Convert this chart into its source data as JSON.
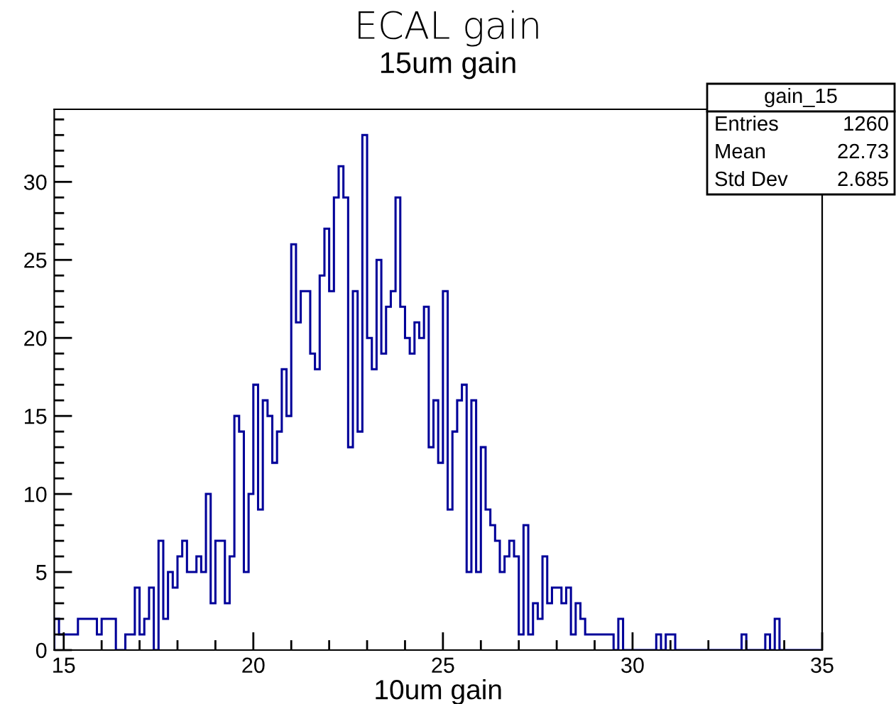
{
  "chart_data": {
    "type": "histogram",
    "title": "ECAL gain",
    "subtitle": "15um gain",
    "xlabel": "10um gain",
    "bins": [
      14.75,
      14.875,
      15,
      15.125,
      15.25,
      15.375,
      15.5,
      15.625,
      15.75,
      15.875,
      16,
      16.125,
      16.25,
      16.375,
      16.5,
      16.625,
      16.75,
      16.875,
      17,
      17.125,
      17.25,
      17.375,
      17.5,
      17.625,
      17.75,
      17.875,
      18,
      18.125,
      18.25,
      18.375,
      18.5,
      18.625,
      18.75,
      18.875,
      19,
      19.125,
      19.25,
      19.375,
      19.5,
      19.625,
      19.75,
      19.875,
      20,
      20.125,
      20.25,
      20.375,
      20.5,
      20.625,
      20.75,
      20.875,
      21,
      21.125,
      21.25,
      21.375,
      21.5,
      21.625,
      21.75,
      21.875,
      22,
      22.125,
      22.25,
      22.375,
      22.5,
      22.625,
      22.75,
      22.875,
      23,
      23.125,
      23.25,
      23.375,
      23.5,
      23.625,
      23.75,
      23.875,
      24,
      24.125,
      24.25,
      24.375,
      24.5,
      24.625,
      24.75,
      24.875,
      25,
      25.125,
      25.25,
      25.375,
      25.5,
      25.625,
      25.75,
      25.875,
      26,
      26.125,
      26.25,
      26.375,
      26.5,
      26.625,
      26.75,
      26.875,
      27,
      27.125,
      27.25,
      27.375,
      27.5,
      27.625,
      27.75,
      27.875,
      28,
      28.125,
      28.25,
      28.375,
      28.5,
      28.625,
      28.75,
      28.875,
      29,
      29.125,
      29.25,
      29.375,
      29.5,
      29.625,
      29.75,
      29.875,
      30,
      30.125,
      30.25,
      30.375,
      30.5,
      30.625,
      30.75,
      30.875,
      31,
      31.125,
      31.25,
      31.375,
      31.5,
      31.625,
      31.75,
      31.875,
      32,
      32.125,
      32.25,
      32.375,
      32.5,
      32.625,
      32.75,
      32.875,
      33,
      33.125,
      33.25,
      33.375,
      33.5,
      33.625,
      33.75,
      33.875,
      34,
      34.125,
      34.25,
      34.375,
      34.5,
      34.625,
      34.75,
      34.875,
      35
    ],
    "values": [
      2,
      1,
      1,
      1,
      1,
      2,
      2,
      2,
      2,
      1,
      2,
      2,
      2,
      0,
      0,
      1,
      1,
      4,
      1,
      2,
      4,
      0,
      7,
      2,
      5,
      4,
      6,
      7,
      5,
      5,
      6,
      5,
      10,
      3,
      7,
      7,
      3,
      6,
      15,
      14,
      5,
      10,
      17,
      9,
      16,
      15,
      12,
      14,
      18,
      15,
      26,
      21,
      23,
      23,
      19,
      18,
      24,
      27,
      23,
      29,
      31,
      29,
      13,
      23,
      14,
      33,
      20,
      18,
      25,
      19,
      22,
      23,
      29,
      22,
      20,
      19,
      21,
      20,
      22,
      13,
      16,
      12,
      23,
      9,
      14,
      16,
      17,
      5,
      16,
      5,
      13,
      9,
      8,
      7,
      5,
      6,
      7,
      6,
      1,
      8,
      1,
      3,
      2,
      6,
      3,
      4,
      4,
      3,
      4,
      1,
      3,
      2,
      1,
      1,
      1,
      1,
      1,
      1,
      0,
      2,
      0,
      0,
      0,
      0,
      0,
      0,
      0,
      1,
      0,
      1,
      1,
      0,
      0,
      0,
      0,
      0,
      0,
      0,
      0,
      0,
      0,
      0,
      0,
      0,
      0,
      1,
      0,
      0,
      0,
      0,
      1,
      0,
      2,
      0,
      0,
      0,
      0,
      0,
      0,
      0,
      0,
      0
    ],
    "color": "#000099",
    "xlim": [
      14.75,
      35
    ],
    "xticks": [
      15,
      {
        "value": 16,
        "label": null
      },
      {
        "value": 17,
        "label": null
      },
      {
        "value": 18,
        "label": null
      },
      {
        "value": 19,
        "label": null
      },
      20,
      {
        "value": 21,
        "label": null
      },
      {
        "value": 22,
        "label": null
      },
      {
        "value": 23,
        "label": null
      },
      {
        "value": 24,
        "label": null
      },
      25,
      {
        "value": 26,
        "label": null
      },
      {
        "value": 27,
        "label": null
      },
      {
        "value": 28,
        "label": null
      },
      {
        "value": 29,
        "label": null
      },
      30,
      {
        "value": 31,
        "label": null
      },
      {
        "value": 32,
        "label": null
      },
      {
        "value": 33,
        "label": null
      },
      {
        "value": 34,
        "label": null
      },
      35
    ],
    "ylim": [
      0,
      34.65
    ],
    "yticks": [
      0,
      {
        "value": 1,
        "label": null
      },
      {
        "value": 2,
        "label": null
      },
      {
        "value": 3,
        "label": null
      },
      {
        "value": 4,
        "label": null
      },
      5,
      {
        "value": 6,
        "label": null
      },
      {
        "value": 7,
        "label": null
      },
      {
        "value": 8,
        "label": null
      },
      {
        "value": 9,
        "label": null
      },
      10,
      {
        "value": 11,
        "label": null
      },
      {
        "value": 12,
        "label": null
      },
      {
        "value": 13,
        "label": null
      },
      {
        "value": 14,
        "label": null
      },
      15,
      {
        "value": 16,
        "label": null
      },
      {
        "value": 17,
        "label": null
      },
      {
        "value": 18,
        "label": null
      },
      {
        "value": 19,
        "label": null
      },
      20,
      {
        "value": 21,
        "label": null
      },
      {
        "value": 22,
        "label": null
      },
      {
        "value": 23,
        "label": null
      },
      {
        "value": 24,
        "label": null
      },
      25,
      {
        "value": 26,
        "label": null
      },
      {
        "value": 27,
        "label": null
      },
      {
        "value": 28,
        "label": null
      },
      {
        "value": 29,
        "label": null
      },
      30,
      {
        "value": 31,
        "label": null
      },
      {
        "value": 32,
        "label": null
      },
      {
        "value": 33,
        "label": null
      },
      {
        "value": 34,
        "label": null
      }
    ],
    "grid": false,
    "legend": false,
    "annotations": [
      "gain_15",
      "Entries",
      "1260",
      "Mean",
      "22.73",
      "Std Dev",
      "2.685"
    ]
  }
}
